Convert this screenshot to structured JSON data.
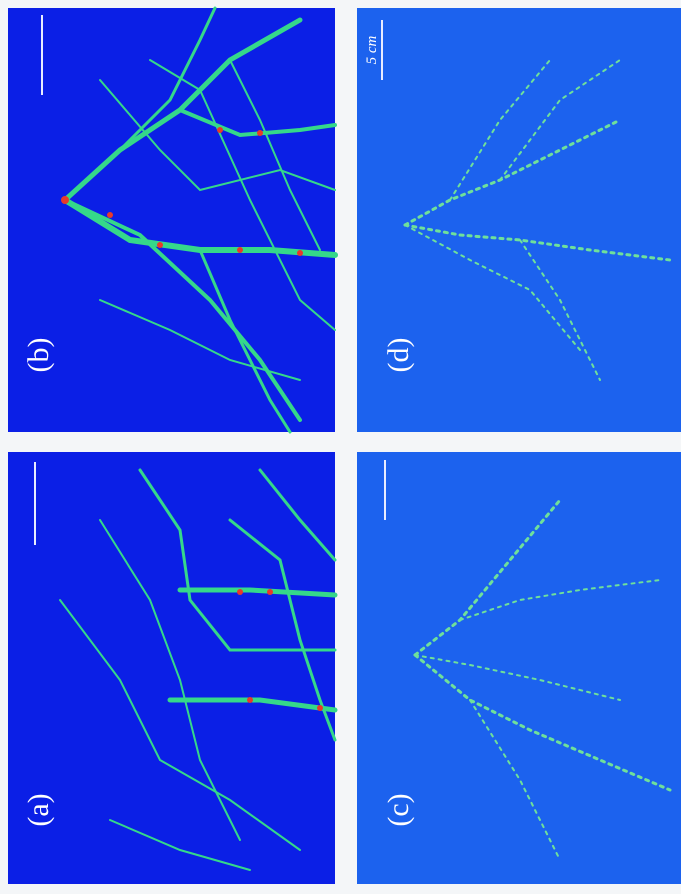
{
  "panels": [
    {
      "label": "(a)"
    },
    {
      "label": "(b)"
    },
    {
      "label": "(c)"
    },
    {
      "label": "(d)"
    }
  ],
  "scale_bar": "5 cm"
}
